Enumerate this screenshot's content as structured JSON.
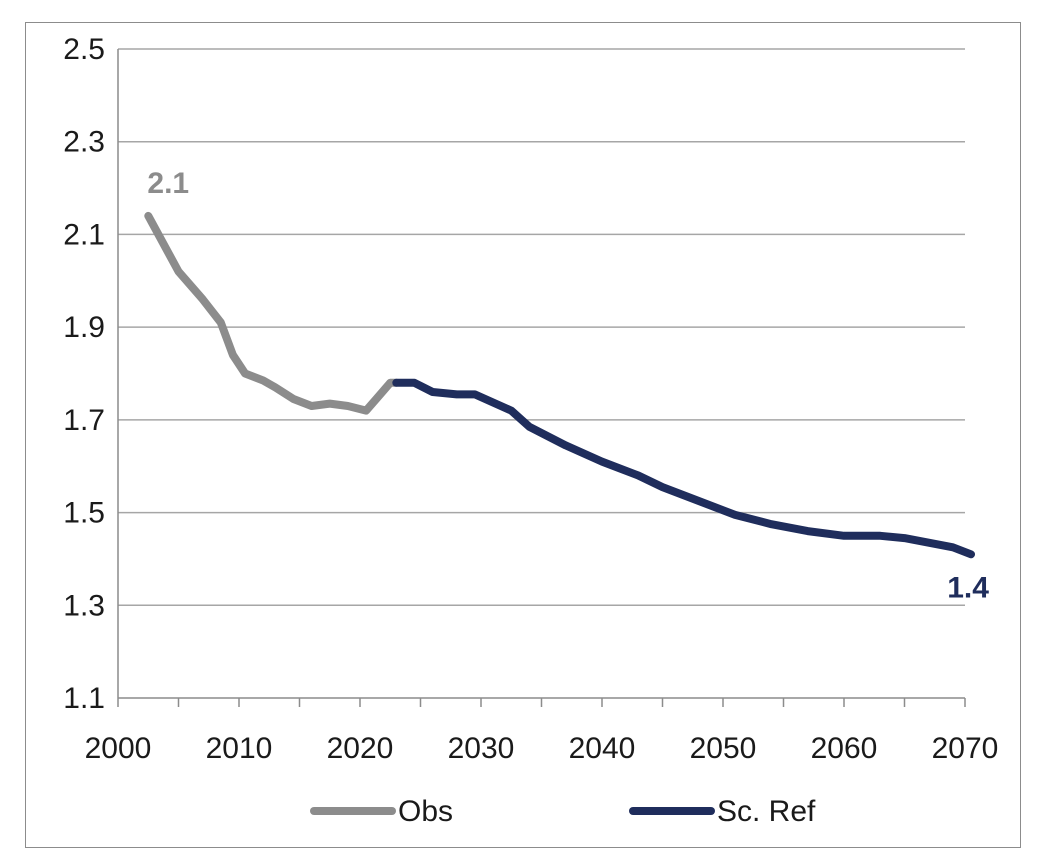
{
  "chart_data": {
    "type": "line",
    "xlim": [
      2000,
      2070
    ],
    "ylim": [
      1.1,
      2.5
    ],
    "x_ticks": [
      2000,
      2010,
      2020,
      2030,
      2040,
      2050,
      2060,
      2070
    ],
    "y_ticks": [
      "1.1",
      "1.3",
      "1.5",
      "1.7",
      "1.9",
      "2.1",
      "2.3",
      "2.5"
    ],
    "grid": true,
    "legend_position": "bottom",
    "series": [
      {
        "name": "Obs",
        "color": "#8c8c8c",
        "x": [
          2002.5,
          2005,
          2007,
          2008.5,
          2009.5,
          2010.5,
          2012,
          2013,
          2014.5,
          2016,
          2017.5,
          2019,
          2020.5,
          2021.5,
          2022.5,
          2023
        ],
        "y": [
          2.14,
          2.02,
          1.96,
          1.91,
          1.84,
          1.8,
          1.785,
          1.77,
          1.745,
          1.73,
          1.735,
          1.73,
          1.72,
          1.75,
          1.78,
          1.78
        ]
      },
      {
        "name": "Sc. Ref",
        "color": "#1f2d5c",
        "x": [
          2023,
          2024.5,
          2026,
          2028,
          2029.5,
          2032.5,
          2034,
          2037,
          2040,
          2043,
          2045,
          2048,
          2051,
          2054,
          2057,
          2060,
          2063,
          2065,
          2067,
          2069,
          2070.5
        ],
        "y": [
          1.78,
          1.78,
          1.76,
          1.755,
          1.755,
          1.72,
          1.685,
          1.645,
          1.61,
          1.58,
          1.555,
          1.525,
          1.495,
          1.475,
          1.46,
          1.45,
          1.45,
          1.445,
          1.435,
          1.425,
          1.41
        ]
      }
    ],
    "annotations": [
      {
        "text": "2.1",
        "series": "Obs",
        "color": "#8c8c8c"
      },
      {
        "text": "1.4",
        "series": "Sc. Ref",
        "color": "#1f2d5c"
      }
    ]
  }
}
